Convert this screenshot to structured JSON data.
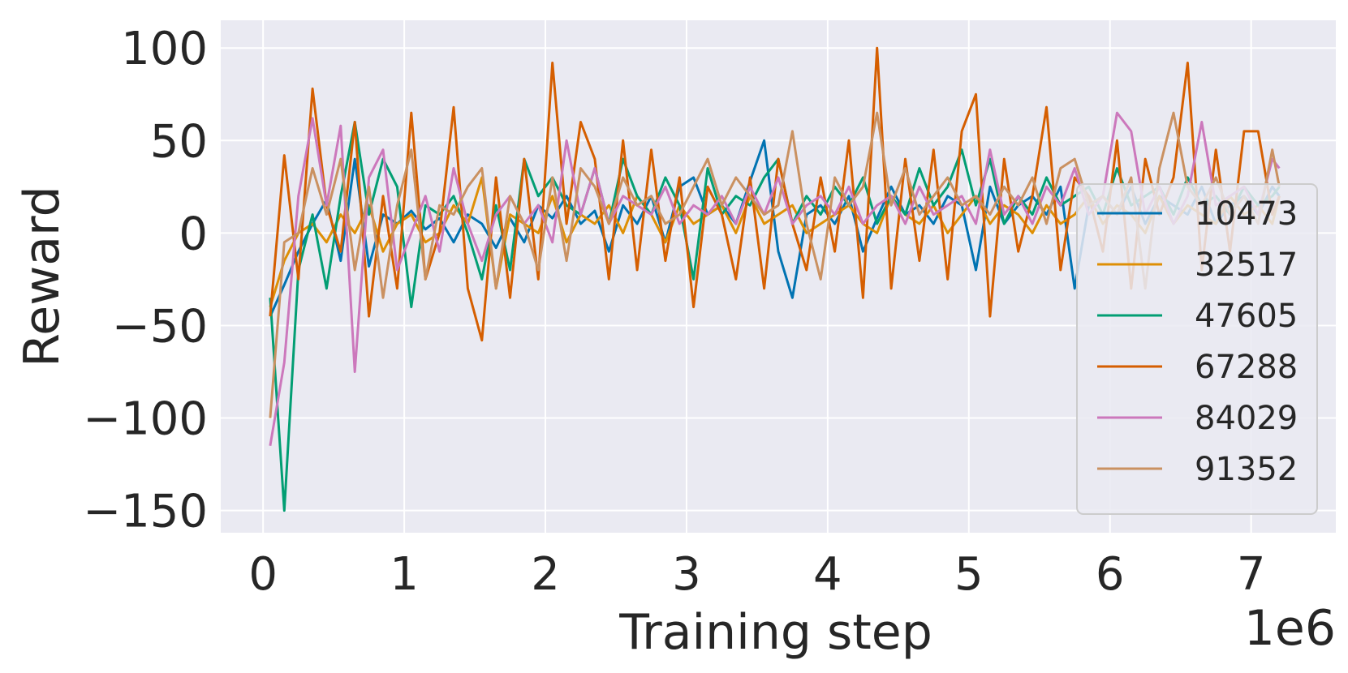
{
  "chart_data": {
    "type": "line",
    "title": "",
    "xlabel": "Training step",
    "ylabel": "Reward",
    "x_offset_text": "1e6",
    "xlim": [
      -0.3,
      7.6
    ],
    "ylim": [
      -162,
      115
    ],
    "xticks": [
      0,
      1,
      2,
      3,
      4,
      5,
      6,
      7
    ],
    "yticks": [
      -150,
      -100,
      -50,
      0,
      50,
      100
    ],
    "xtick_labels": [
      "0",
      "1",
      "2",
      "3",
      "4",
      "5",
      "6",
      "7"
    ],
    "ytick_labels": [
      "−150",
      "−100",
      "−50",
      "0",
      "50",
      "100"
    ],
    "grid": true,
    "legend_position": "lower right",
    "background": "#eaeaf2",
    "x": [
      0.05,
      0.15,
      0.25,
      0.35,
      0.45,
      0.55,
      0.65,
      0.75,
      0.85,
      0.95,
      1.05,
      1.15,
      1.25,
      1.35,
      1.45,
      1.55,
      1.65,
      1.75,
      1.85,
      1.95,
      2.05,
      2.15,
      2.25,
      2.35,
      2.45,
      2.55,
      2.65,
      2.75,
      2.85,
      2.95,
      3.05,
      3.15,
      3.25,
      3.35,
      3.45,
      3.55,
      3.65,
      3.75,
      3.85,
      3.95,
      4.05,
      4.15,
      4.25,
      4.35,
      4.45,
      4.55,
      4.65,
      4.75,
      4.85,
      4.95,
      5.05,
      5.15,
      5.25,
      5.35,
      5.45,
      5.55,
      5.65,
      5.75,
      5.85,
      5.95,
      6.05,
      6.15,
      6.25,
      6.35,
      6.45,
      6.55,
      6.65,
      6.75,
      6.85,
      6.95,
      7.05,
      7.15,
      7.2
    ],
    "series": [
      {
        "name": "10473",
        "color": "#0173b2",
        "values": [
          -45,
          -28,
          -10,
          5,
          18,
          -15,
          40,
          -18,
          10,
          5,
          12,
          2,
          8,
          -5,
          10,
          5,
          -8,
          8,
          -5,
          15,
          8,
          20,
          5,
          12,
          -10,
          15,
          5,
          20,
          -5,
          25,
          30,
          10,
          15,
          5,
          28,
          50,
          -10,
          -35,
          10,
          15,
          5,
          20,
          -10,
          8,
          25,
          10,
          15,
          5,
          20,
          15,
          -20,
          25,
          5,
          15,
          20,
          10,
          25,
          -30,
          15,
          20,
          10,
          25,
          5,
          20,
          15,
          10,
          25,
          5,
          15,
          20,
          10,
          25,
          20
        ]
      },
      {
        "name": "32517",
        "color": "#de8f05",
        "values": [
          -40,
          -15,
          0,
          5,
          -5,
          10,
          0,
          15,
          -10,
          5,
          10,
          -5,
          0,
          15,
          5,
          30,
          -30,
          10,
          5,
          0,
          20,
          -5,
          10,
          5,
          15,
          0,
          20,
          10,
          -5,
          15,
          5,
          10,
          15,
          0,
          20,
          5,
          10,
          15,
          0,
          5,
          10,
          15,
          5,
          0,
          20,
          10,
          5,
          15,
          0,
          10,
          20,
          5,
          15,
          10,
          0,
          15,
          5,
          10,
          20,
          5,
          15,
          10,
          0,
          20,
          5,
          15,
          10,
          5,
          20,
          10,
          15,
          5,
          20
        ]
      },
      {
        "name": "47605",
        "color": "#029e73",
        "values": [
          -35,
          -150,
          -20,
          10,
          -30,
          20,
          60,
          10,
          40,
          25,
          -40,
          15,
          10,
          20,
          0,
          -25,
          15,
          -20,
          40,
          20,
          30,
          15,
          10,
          35,
          5,
          40,
          20,
          10,
          30,
          15,
          -25,
          35,
          10,
          20,
          15,
          30,
          40,
          5,
          20,
          10,
          25,
          15,
          30,
          5,
          20,
          10,
          35,
          15,
          25,
          45,
          15,
          40,
          5,
          20,
          10,
          30,
          15,
          20,
          25,
          10,
          35,
          15,
          20,
          25,
          10,
          30,
          15,
          20,
          10,
          25,
          15,
          20,
          25
        ]
      },
      {
        "name": "67288",
        "color": "#d55e00",
        "values": [
          -45,
          42,
          -25,
          78,
          15,
          -10,
          60,
          -45,
          20,
          -30,
          65,
          -25,
          0,
          68,
          -30,
          -58,
          30,
          -35,
          40,
          -25,
          92,
          5,
          60,
          40,
          -25,
          50,
          -20,
          45,
          -15,
          30,
          -40,
          25,
          10,
          -25,
          30,
          -30,
          40,
          5,
          -20,
          30,
          -10,
          50,
          -35,
          100,
          -30,
          40,
          -15,
          45,
          -25,
          55,
          75,
          -45,
          40,
          -10,
          20,
          68,
          -20,
          30,
          20,
          -10,
          50,
          -30,
          40,
          10,
          30,
          92,
          -20,
          45,
          -10,
          55,
          55,
          10,
          20
        ]
      },
      {
        "name": "84029",
        "color": "#cc78bc",
        "values": [
          -115,
          -70,
          20,
          62,
          15,
          58,
          -75,
          30,
          45,
          -20,
          0,
          20,
          -10,
          35,
          5,
          -15,
          10,
          20,
          5,
          15,
          -5,
          50,
          10,
          35,
          5,
          20,
          15,
          10,
          25,
          5,
          15,
          10,
          20,
          5,
          25,
          10,
          30,
          5,
          15,
          20,
          10,
          25,
          5,
          15,
          20,
          5,
          25,
          10,
          15,
          20,
          5,
          45,
          10,
          20,
          5,
          25,
          15,
          35,
          10,
          20,
          65,
          55,
          10,
          25,
          5,
          20,
          60,
          15,
          20,
          25,
          10,
          40,
          35
        ]
      },
      {
        "name": "91352",
        "color": "#ca9161",
        "values": [
          -100,
          -5,
          0,
          35,
          10,
          40,
          -20,
          25,
          -35,
          15,
          45,
          -25,
          15,
          10,
          25,
          35,
          -30,
          20,
          5,
          -20,
          30,
          -15,
          35,
          25,
          5,
          30,
          15,
          20,
          5,
          10,
          25,
          40,
          15,
          30,
          20,
          10,
          15,
          55,
          5,
          -25,
          30,
          15,
          25,
          65,
          15,
          35,
          10,
          20,
          30,
          15,
          20,
          10,
          25,
          15,
          30,
          5,
          35,
          40,
          15,
          20,
          10,
          30,
          -30,
          35,
          65,
          25,
          15,
          30,
          10,
          20,
          5,
          45,
          25
        ]
      }
    ]
  }
}
